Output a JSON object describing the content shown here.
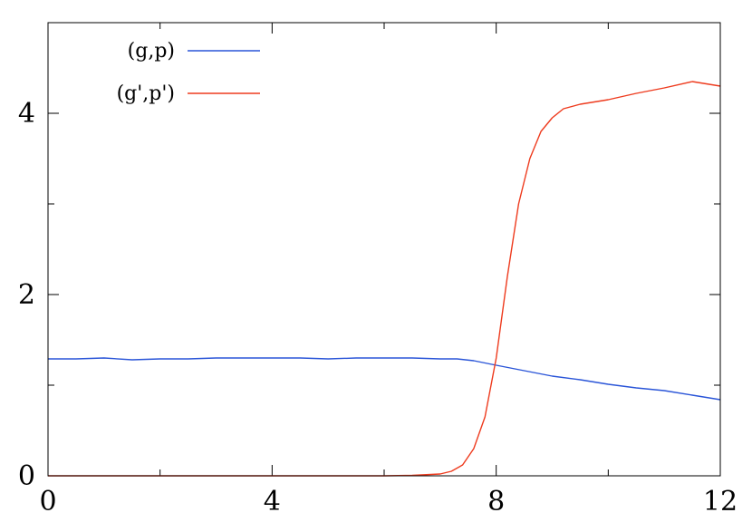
{
  "chart_data": {
    "type": "line",
    "title": "",
    "xlabel": "",
    "ylabel": "",
    "xlim": [
      0,
      12
    ],
    "ylim": [
      0,
      5
    ],
    "x_ticks": [
      0,
      4,
      8,
      12
    ],
    "x_tick_labels": [
      "0",
      "4",
      "8",
      "12"
    ],
    "x_minor_ticks": [
      2,
      6,
      10
    ],
    "y_ticks": [
      0,
      2,
      4
    ],
    "y_tick_labels": [
      "0",
      "2",
      "4"
    ],
    "y_minor_ticks": [
      1,
      3
    ],
    "grid": false,
    "legend_position": "top-left",
    "series": [
      {
        "name": "(g,p)",
        "color": "#2a55d8",
        "x": [
          0,
          0.5,
          1,
          1.5,
          2,
          2.5,
          3,
          3.5,
          4,
          4.5,
          5,
          5.5,
          6,
          6.5,
          7,
          7.3,
          7.6,
          8,
          8.5,
          9,
          9.5,
          10,
          10.5,
          11,
          11.5,
          12
        ],
        "y": [
          1.29,
          1.29,
          1.3,
          1.28,
          1.29,
          1.29,
          1.3,
          1.3,
          1.3,
          1.3,
          1.29,
          1.3,
          1.3,
          1.3,
          1.29,
          1.29,
          1.27,
          1.22,
          1.16,
          1.1,
          1.06,
          1.01,
          0.97,
          0.94,
          0.89,
          0.84
        ]
      },
      {
        "name": "(g',p')",
        "color": "#ee3b1e",
        "x": [
          0,
          6,
          6.5,
          7,
          7.2,
          7.4,
          7.6,
          7.8,
          8.0,
          8.2,
          8.4,
          8.6,
          8.8,
          9.0,
          9.2,
          9.5,
          10.0,
          10.5,
          11.0,
          11.5,
          12.0
        ],
        "y": [
          0,
          0,
          0.005,
          0.02,
          0.05,
          0.12,
          0.3,
          0.65,
          1.3,
          2.2,
          3.0,
          3.5,
          3.8,
          3.95,
          4.05,
          4.1,
          4.15,
          4.22,
          4.28,
          4.35,
          4.3
        ]
      }
    ]
  }
}
